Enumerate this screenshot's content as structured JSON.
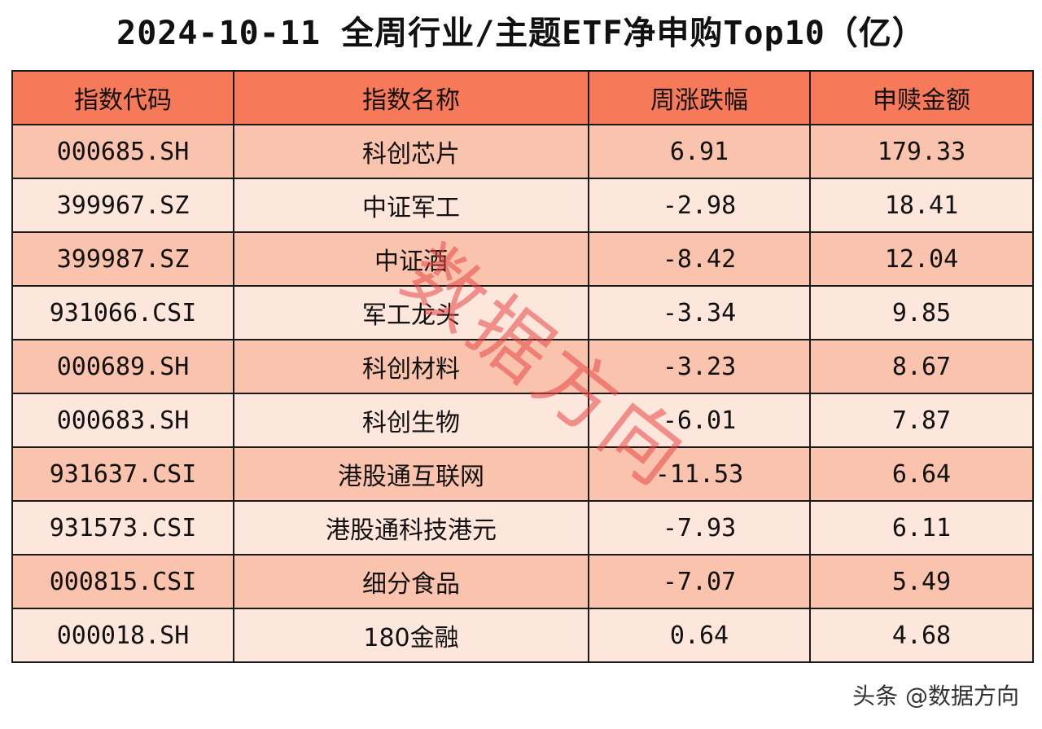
{
  "title": "2024-10-11 全周行业/主题ETF净申购Top10（亿）",
  "watermark": "数据方向",
  "footer": "头条 @数据方向",
  "colors": {
    "header_bg": "#f6795a",
    "row_odd_bg": "#f9c3ad",
    "row_even_bg": "#fde6dc",
    "watermark": "#e84646"
  },
  "chart_data": {
    "type": "table",
    "title": "2024-10-11 全周行业/主题ETF净申购Top10（亿）",
    "columns": [
      "指数代码",
      "指数名称",
      "周涨跌幅",
      "申赎金额"
    ],
    "rows": [
      [
        "000685.SH",
        "科创芯片",
        "6.91",
        "179.33"
      ],
      [
        "399967.SZ",
        "中证军工",
        "-2.98",
        "18.41"
      ],
      [
        "399987.SZ",
        "中证酒",
        "-8.42",
        "12.04"
      ],
      [
        "931066.CSI",
        "军工龙头",
        "-3.34",
        "9.85"
      ],
      [
        "000689.SH",
        "科创材料",
        "-3.23",
        "8.67"
      ],
      [
        "000683.SH",
        "科创生物",
        "-6.01",
        "7.87"
      ],
      [
        "931637.CSI",
        "港股通互联网",
        "-11.53",
        "6.64"
      ],
      [
        "931573.CSI",
        "港股通科技港元",
        "-7.93",
        "6.11"
      ],
      [
        "000815.CSI",
        "细分食品",
        "-7.07",
        "5.49"
      ],
      [
        "000018.SH",
        "180金融",
        "0.64",
        "4.68"
      ]
    ]
  }
}
